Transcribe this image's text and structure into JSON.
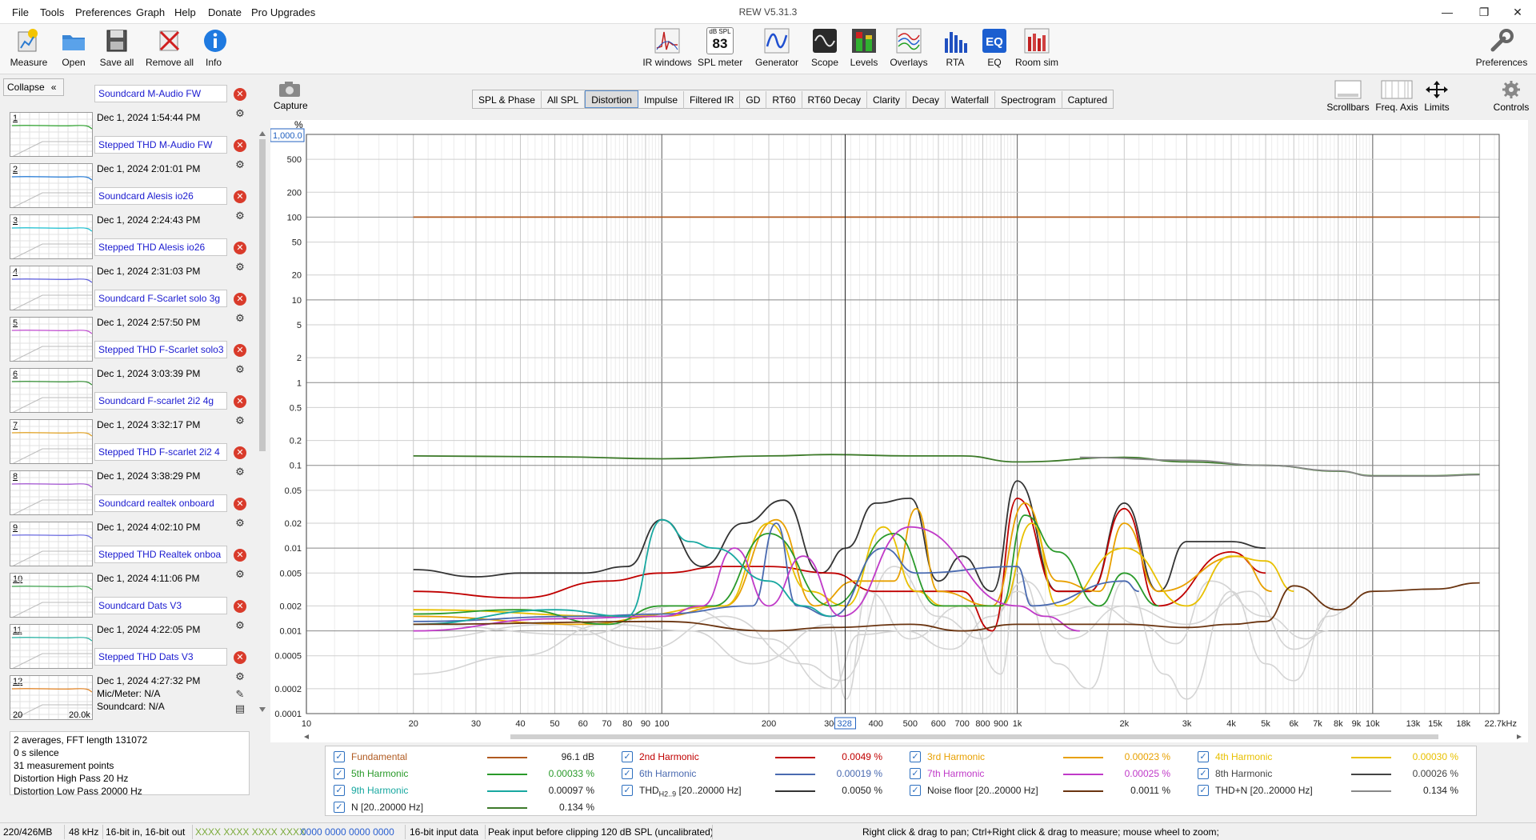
{
  "app": {
    "title": "REW V5.31.3"
  },
  "menu": [
    "File",
    "Tools",
    "Preferences",
    "Graph",
    "Help",
    "Donate",
    "Pro Upgrades"
  ],
  "window_controls": [
    "—",
    "❐",
    "✕"
  ],
  "toolbar": {
    "left": [
      {
        "label": "Measure",
        "icon": "measure-icon"
      },
      {
        "label": "Open",
        "icon": "folder-icon"
      },
      {
        "label": "Save all",
        "icon": "save-icon"
      },
      {
        "label": "Remove all",
        "icon": "remove-icon"
      },
      {
        "label": "Info",
        "icon": "info-icon"
      }
    ],
    "center": [
      {
        "label": "IR windows",
        "icon": "ir-windows-icon"
      },
      {
        "label": "SPL meter",
        "icon": "spl-meter-icon",
        "badge_top": "dB SPL",
        "badge_value": "83"
      },
      {
        "label": "Generator",
        "icon": "generator-icon"
      },
      {
        "label": "Scope",
        "icon": "scope-icon"
      },
      {
        "label": "Levels",
        "icon": "levels-icon"
      },
      {
        "label": "Overlays",
        "icon": "overlays-icon"
      },
      {
        "label": "RTA",
        "icon": "rta-icon"
      },
      {
        "label": "EQ",
        "icon": "eq-icon"
      },
      {
        "label": "Room sim",
        "icon": "room-sim-icon"
      }
    ],
    "right": {
      "label": "Preferences",
      "icon": "wrench-icon"
    }
  },
  "left_panel": {
    "collapse_label": "Collapse",
    "measurements": [
      {
        "num": "1",
        "name": "Soundcard M-Audio FW",
        "date": "Dec 1, 2024 1:54:44 PM",
        "color": "#2ca02c"
      },
      {
        "num": "2",
        "name": "Stepped THD M-Audio FW",
        "date": "Dec 1, 2024 2:01:01 PM",
        "color": "#1f77d4"
      },
      {
        "num": "3",
        "name": "Soundcard  Alesis io26",
        "date": "Dec 1, 2024 2:24:43 PM",
        "color": "#17becf"
      },
      {
        "num": "4",
        "name": "Stepped THD Alesis io26",
        "date": "Dec 1, 2024 2:31:03 PM",
        "color": "#5a5adc"
      },
      {
        "num": "5",
        "name": "Soundcard F-Scarlet solo 3g",
        "date": "Dec 1, 2024 2:57:50 PM",
        "color": "#c04ad0"
      },
      {
        "num": "6",
        "name": "Stepped THD F-Scarlet solo3",
        "date": "Dec 1, 2024 3:03:39 PM",
        "color": "#2e8b2e"
      },
      {
        "num": "7",
        "name": "Soundcard F-scarlet 2i2 4g",
        "date": "Dec 1, 2024 3:32:17 PM",
        "color": "#e0a020"
      },
      {
        "num": "8",
        "name": "Stepped THD  F-scarlet 2i2 4",
        "date": "Dec 1, 2024 3:38:29 PM",
        "color": "#a050d0"
      },
      {
        "num": "9",
        "name": "Soundcard realtek onboard",
        "date": "Dec 1, 2024 4:02:10 PM",
        "color": "#6a6ae0"
      },
      {
        "num": "10",
        "name": "Stepped THD Realtek onboa",
        "date": "Dec 1, 2024 4:11:06 PM",
        "color": "#3aa04a"
      },
      {
        "num": "11",
        "name": "Soundcard Dats V3",
        "date": "Dec 1, 2024 4:22:05 PM",
        "color": "#20b0a0"
      },
      {
        "num": "12",
        "name": "Stepped THD Dats V3",
        "date": "Dec 1, 2024 4:27:32 PM",
        "color": "#e08020",
        "mic": "Mic/Meter: N/A",
        "soundcard": "Soundcard: N/A",
        "axis_min": "20",
        "axis_max": "20.0k"
      }
    ],
    "info_lines": [
      "2 averages, FFT length 131072",
      "0 s silence",
      "31 measurement points",
      "Distortion High Pass 20 Hz",
      "Distortion Low Pass 20000 Hz"
    ]
  },
  "capture": {
    "label": "Capture"
  },
  "tabs": [
    "SPL & Phase",
    "All SPL",
    "Distortion",
    "Impulse",
    "Filtered IR",
    "GD",
    "RT60",
    "RT60 Decay",
    "Clarity",
    "Decay",
    "Waterfall",
    "Spectrogram",
    "Captured"
  ],
  "active_tab": "Distortion",
  "right_tools": [
    {
      "label": "Scrollbars",
      "icon": "scrollbars-icon"
    },
    {
      "label": "Freq. Axis",
      "icon": "freq-axis-icon"
    },
    {
      "label": "Limits",
      "icon": "limits-icon"
    },
    {
      "label": "Controls",
      "icon": "gear-icon"
    }
  ],
  "chart_data": {
    "type": "line",
    "xscale": "log",
    "yscale": "log",
    "xlim": [
      10,
      22700
    ],
    "ylim": [
      0.0001,
      1000
    ],
    "ylabel": "%",
    "y_top_value_box": "1,000.0",
    "cursor_x_label": "328",
    "yticks": [
      "1,000.0",
      "500",
      "200",
      "100",
      "50",
      "20",
      "10",
      "5",
      "2",
      "1",
      "0.5",
      "0.2",
      "0.1",
      "0.05",
      "0.02",
      "0.01",
      "0.005",
      "0.002",
      "0.001",
      "0.0005",
      "0.0002",
      "0.0001"
    ],
    "xticks": [
      "10",
      "20",
      "30",
      "40",
      "50",
      "60",
      "70",
      "80",
      "90",
      "100",
      "200",
      "300",
      "400",
      "500",
      "600",
      "700",
      "800",
      "900",
      "1k",
      "2k",
      "3k",
      "4k",
      "5k",
      "6k",
      "7k",
      "8k",
      "9k",
      "10k",
      "13k",
      "15k",
      "18k",
      "22.7kHz"
    ],
    "grid": true,
    "series": [
      {
        "name": "Fundamental",
        "color": "#b05a20",
        "x": [
          20,
          20000
        ],
        "y": [
          100,
          100
        ]
      },
      {
        "name": "N [20..20000 Hz]",
        "color": "#3d7a2a",
        "x": [
          20,
          50,
          100,
          200,
          300,
          500,
          700,
          1000,
          2000,
          3000,
          5000,
          8000,
          10000,
          15000,
          20000
        ],
        "y": [
          0.13,
          0.127,
          0.12,
          0.13,
          0.135,
          0.13,
          0.13,
          0.11,
          0.125,
          0.11,
          0.1,
          0.085,
          0.075,
          0.075,
          0.078
        ]
      },
      {
        "name": "THD+N [20..20000 Hz]",
        "color": "#888888",
        "x": [
          1500,
          3000,
          5000,
          8000,
          10000,
          15000,
          20000
        ],
        "y": [
          0.125,
          0.115,
          0.1,
          0.086,
          0.074,
          0.074,
          0.077
        ]
      },
      {
        "name": "THD H2..9 [20..20000 Hz]",
        "color": "#333333",
        "x": [
          20,
          30,
          40,
          60,
          80,
          100,
          130,
          170,
          220,
          280,
          330,
          400,
          500,
          600,
          700,
          850,
          1000,
          1300,
          1600,
          2000,
          2500,
          3000,
          4000,
          5000
        ],
        "y": [
          0.0055,
          0.0045,
          0.005,
          0.005,
          0.006,
          0.022,
          0.006,
          0.02,
          0.038,
          0.005,
          0.01,
          0.035,
          0.04,
          0.004,
          0.008,
          0.003,
          0.065,
          0.003,
          0.003,
          0.035,
          0.003,
          0.012,
          0.012,
          0.01
        ]
      },
      {
        "name": "2nd Harmonic",
        "color": "#c00000",
        "x": [
          20,
          40,
          70,
          100,
          150,
          200,
          300,
          400,
          500,
          700,
          850,
          1000,
          1300,
          1600,
          2000,
          2500,
          4000,
          5000
        ],
        "y": [
          0.003,
          0.0025,
          0.004,
          0.005,
          0.006,
          0.006,
          0.005,
          0.003,
          0.003,
          0.003,
          0.001,
          0.04,
          0.003,
          0.003,
          0.03,
          0.002,
          0.009,
          0.005
        ]
      },
      {
        "name": "3rd Harmonic",
        "color": "#e8a000",
        "x": [
          20,
          60,
          100,
          150,
          210,
          270,
          350,
          450,
          520,
          600,
          850,
          1050,
          1300,
          1700,
          2000,
          2500,
          4200,
          5200
        ],
        "y": [
          0.0015,
          0.0012,
          0.0015,
          0.002,
          0.022,
          0.002,
          0.004,
          0.004,
          0.03,
          0.003,
          0.002,
          0.035,
          0.004,
          0.003,
          0.02,
          0.003,
          0.008,
          0.003
        ]
      },
      {
        "name": "4th Harmonic",
        "color": "#e8c000",
        "x": [
          20,
          80,
          150,
          200,
          260,
          330,
          420,
          520,
          620,
          900,
          1100,
          1300,
          2000,
          3000,
          4000,
          5000,
          6000
        ],
        "y": [
          0.0018,
          0.0015,
          0.002,
          0.02,
          0.003,
          0.002,
          0.018,
          0.003,
          0.002,
          0.002,
          0.02,
          0.002,
          0.01,
          0.002,
          0.008,
          0.007,
          0.003
        ]
      },
      {
        "name": "5th Harmonic",
        "color": "#2a9a2a",
        "x": [
          20,
          40,
          70,
          100,
          140,
          200,
          300,
          450,
          600,
          900,
          1050,
          1300,
          1700,
          2000,
          2500
        ],
        "y": [
          0.0016,
          0.0018,
          0.0012,
          0.002,
          0.002,
          0.015,
          0.002,
          0.015,
          0.002,
          0.002,
          0.025,
          0.009,
          0.002,
          0.005,
          0.002
        ]
      },
      {
        "name": "6th Harmonic",
        "color": "#4a6ab0",
        "x": [
          20,
          60,
          100,
          180,
          210,
          240,
          300,
          420,
          520,
          1000,
          1100,
          2000,
          2200
        ],
        "y": [
          0.0013,
          0.0015,
          0.0016,
          0.002,
          0.02,
          0.002,
          0.0015,
          0.01,
          0.005,
          0.006,
          0.002,
          0.004,
          0.003
        ]
      },
      {
        "name": "7th Harmonic",
        "color": "#c03ac8",
        "x": [
          20,
          50,
          100,
          130,
          160,
          200,
          250,
          320,
          500,
          1000,
          1200,
          1500
        ],
        "y": [
          0.001,
          0.0014,
          0.0015,
          0.002,
          0.01,
          0.002,
          0.008,
          0.0015,
          0.018,
          0.002,
          0.0015,
          0.001
        ]
      },
      {
        "name": "9th Harmonic",
        "color": "#18a8a0",
        "x": [
          20,
          50,
          80,
          100,
          120,
          140,
          200,
          250,
          300
        ],
        "y": [
          0.0012,
          0.0018,
          0.0015,
          0.022,
          0.012,
          0.01,
          0.004,
          0.002,
          0.0015
        ]
      },
      {
        "name": "Noise floor [20..20000 Hz]",
        "color": "#6a3410",
        "x": [
          20,
          100,
          200,
          300,
          500,
          700,
          1000,
          2000,
          3000,
          4000,
          5000,
          6000,
          8000,
          10000,
          15000,
          20000
        ],
        "y": [
          0.0012,
          0.0013,
          0.001,
          0.0011,
          0.0012,
          0.001,
          0.0012,
          0.0012,
          0.0011,
          0.0012,
          0.0013,
          0.0035,
          0.0018,
          0.003,
          0.0032,
          0.0038
        ]
      }
    ],
    "legend_placement": "bottom",
    "legend": [
      {
        "name": "Fundamental",
        "value": "96.1 dB",
        "color": "#b05a20"
      },
      {
        "name": "2nd Harmonic",
        "value": "0.0049 %",
        "color": "#c00000"
      },
      {
        "name": "3rd Harmonic",
        "value": "0.00023 %",
        "color": "#e8a000"
      },
      {
        "name": "4th Harmonic",
        "value": "0.00030 %",
        "color": "#e8c000"
      },
      {
        "name": "5th Harmonic",
        "value": "0.00033 %",
        "color": "#2a9a2a"
      },
      {
        "name": "6th Harmonic",
        "value": "0.00019 %",
        "color": "#4a6ab0"
      },
      {
        "name": "7th Harmonic",
        "value": "0.00025 %",
        "color": "#c03ac8"
      },
      {
        "name": "8th Harmonic",
        "value": "0.00026 %",
        "color": "#444444"
      },
      {
        "name": "9th Harmonic",
        "value": "0.00097 %",
        "color": "#18a8a0"
      },
      {
        "name": "THD",
        "sub": "H2..9",
        "suffix": " [20..20000 Hz]",
        "value": "0.0050 %",
        "color": "#333333"
      },
      {
        "name": "Noise floor [20..20000 Hz]",
        "value": "0.0011 %",
        "color": "#6a3410"
      },
      {
        "name": "THD+N [20..20000 Hz]",
        "value": "0.134 %",
        "color": "#888888"
      },
      {
        "name": "N [20..20000 Hz]",
        "value": "0.134 %",
        "color": "#3d7a2a"
      }
    ]
  },
  "statusbar": {
    "memory": "220/426MB",
    "rate": "48 kHz",
    "bits": "16-bit in, 16-bit out",
    "level_in": "XXXX XXXX  XXXX XXXX",
    "level_out": "0000 0000  0000 0000",
    "input": "16-bit input data",
    "peak": "Peak input before clipping 120 dB SPL (uncalibrated)",
    "hint": "Right click & drag to pan; Ctrl+Right click & drag to measure; mouse wheel to zoom;"
  }
}
